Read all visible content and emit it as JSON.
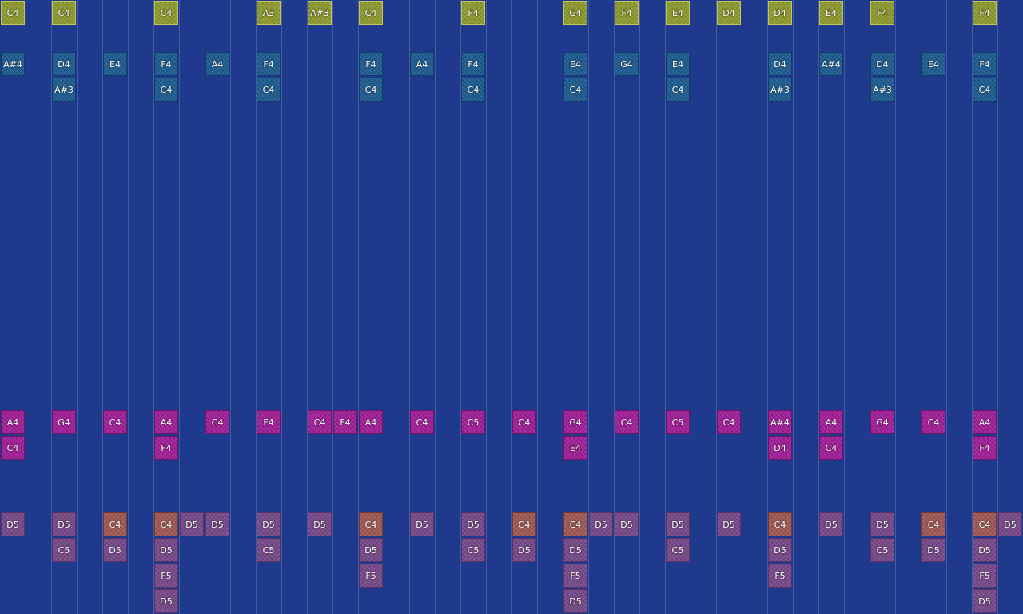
{
  "sequencer": {
    "column_count": 40,
    "tracks": [
      {
        "id": "lead",
        "color": "#8f9a2c",
        "notes": [
          {
            "col": 0,
            "row": 0,
            "pitch": "C4"
          },
          {
            "col": 2,
            "row": 0,
            "pitch": "C4"
          },
          {
            "col": 6,
            "row": 0,
            "pitch": "C4"
          },
          {
            "col": 10,
            "row": 0,
            "pitch": "A3"
          },
          {
            "col": 12,
            "row": 0,
            "pitch": "A#3"
          },
          {
            "col": 14,
            "row": 0,
            "pitch": "C4"
          },
          {
            "col": 18,
            "row": 0,
            "pitch": "F4"
          },
          {
            "col": 22,
            "row": 0,
            "pitch": "G4"
          },
          {
            "col": 24,
            "row": 0,
            "pitch": "F4"
          },
          {
            "col": 26,
            "row": 0,
            "pitch": "E4"
          },
          {
            "col": 28,
            "row": 0,
            "pitch": "D4"
          },
          {
            "col": 30,
            "row": 0,
            "pitch": "D4"
          },
          {
            "col": 32,
            "row": 0,
            "pitch": "E4"
          },
          {
            "col": 34,
            "row": 0,
            "pitch": "F4"
          },
          {
            "col": 38,
            "row": 0,
            "pitch": "F4"
          }
        ]
      },
      {
        "id": "harmony",
        "color": "#1c5d93",
        "notes": [
          {
            "col": 0,
            "row": 0,
            "pitch": "A#4"
          },
          {
            "col": 2,
            "row": 0,
            "pitch": "D4"
          },
          {
            "col": 2,
            "row": 1,
            "pitch": "A#3"
          },
          {
            "col": 4,
            "row": 0,
            "pitch": "E4"
          },
          {
            "col": 6,
            "row": 0,
            "pitch": "F4"
          },
          {
            "col": 6,
            "row": 1,
            "pitch": "C4"
          },
          {
            "col": 8,
            "row": 0,
            "pitch": "A4"
          },
          {
            "col": 10,
            "row": 0,
            "pitch": "F4"
          },
          {
            "col": 10,
            "row": 1,
            "pitch": "C4"
          },
          {
            "col": 14,
            "row": 0,
            "pitch": "F4"
          },
          {
            "col": 14,
            "row": 1,
            "pitch": "C4"
          },
          {
            "col": 16,
            "row": 0,
            "pitch": "A4"
          },
          {
            "col": 18,
            "row": 0,
            "pitch": "F4"
          },
          {
            "col": 18,
            "row": 1,
            "pitch": "C4"
          },
          {
            "col": 22,
            "row": 0,
            "pitch": "E4"
          },
          {
            "col": 22,
            "row": 1,
            "pitch": "C4"
          },
          {
            "col": 24,
            "row": 0,
            "pitch": "G4"
          },
          {
            "col": 26,
            "row": 0,
            "pitch": "E4"
          },
          {
            "col": 26,
            "row": 1,
            "pitch": "C4"
          },
          {
            "col": 30,
            "row": 0,
            "pitch": "D4"
          },
          {
            "col": 30,
            "row": 1,
            "pitch": "A#3"
          },
          {
            "col": 32,
            "row": 0,
            "pitch": "A#4"
          },
          {
            "col": 34,
            "row": 0,
            "pitch": "D4"
          },
          {
            "col": 34,
            "row": 1,
            "pitch": "A#3"
          },
          {
            "col": 36,
            "row": 0,
            "pitch": "E4"
          },
          {
            "col": 38,
            "row": 0,
            "pitch": "F4"
          },
          {
            "col": 38,
            "row": 1,
            "pitch": "C4"
          }
        ]
      },
      {
        "id": "bass",
        "color": "#a51f9c",
        "notes": [
          {
            "col": 0,
            "row": 0,
            "pitch": "A4"
          },
          {
            "col": 0,
            "row": 1,
            "pitch": "C4"
          },
          {
            "col": 2,
            "row": 0,
            "pitch": "G4"
          },
          {
            "col": 4,
            "row": 0,
            "pitch": "C4"
          },
          {
            "col": 6,
            "row": 0,
            "pitch": "A4"
          },
          {
            "col": 6,
            "row": 1,
            "pitch": "F4"
          },
          {
            "col": 8,
            "row": 0,
            "pitch": "C4"
          },
          {
            "col": 10,
            "row": 0,
            "pitch": "F4"
          },
          {
            "col": 12,
            "row": 0,
            "pitch": "C4"
          },
          {
            "col": 13,
            "row": 0,
            "pitch": "F4"
          },
          {
            "col": 14,
            "row": 0,
            "pitch": "A4"
          },
          {
            "col": 16,
            "row": 0,
            "pitch": "C4"
          },
          {
            "col": 18,
            "row": 0,
            "pitch": "C5"
          },
          {
            "col": 20,
            "row": 0,
            "pitch": "C4"
          },
          {
            "col": 22,
            "row": 0,
            "pitch": "G4"
          },
          {
            "col": 22,
            "row": 1,
            "pitch": "E4"
          },
          {
            "col": 24,
            "row": 0,
            "pitch": "C4"
          },
          {
            "col": 26,
            "row": 0,
            "pitch": "C5"
          },
          {
            "col": 28,
            "row": 0,
            "pitch": "C4"
          },
          {
            "col": 30,
            "row": 0,
            "pitch": "A#4"
          },
          {
            "col": 30,
            "row": 1,
            "pitch": "D4"
          },
          {
            "col": 32,
            "row": 0,
            "pitch": "A4"
          },
          {
            "col": 32,
            "row": 1,
            "pitch": "C4"
          },
          {
            "col": 34,
            "row": 0,
            "pitch": "G4"
          },
          {
            "col": 36,
            "row": 0,
            "pitch": "C4"
          },
          {
            "col": 38,
            "row": 0,
            "pitch": "A4"
          },
          {
            "col": 38,
            "row": 1,
            "pitch": "F4"
          }
        ]
      },
      {
        "id": "drums",
        "color": "#7a4b8c",
        "notes": [
          {
            "col": 0,
            "row": 0,
            "pitch": "D5",
            "kind": "drum"
          },
          {
            "col": 2,
            "row": 0,
            "pitch": "D5",
            "kind": "drum"
          },
          {
            "col": 2,
            "row": 1,
            "pitch": "C5",
            "kind": "drum"
          },
          {
            "col": 4,
            "row": 0,
            "pitch": "C4",
            "kind": "kick"
          },
          {
            "col": 4,
            "row": 1,
            "pitch": "D5",
            "kind": "drum"
          },
          {
            "col": 6,
            "row": 0,
            "pitch": "C4",
            "kind": "kick"
          },
          {
            "col": 6,
            "row": 1,
            "pitch": "D5",
            "kind": "drum"
          },
          {
            "col": 6,
            "row": 2,
            "pitch": "F5",
            "kind": "drum"
          },
          {
            "col": 6,
            "row": 3,
            "pitch": "D5",
            "kind": "drum"
          },
          {
            "col": 7,
            "row": 0,
            "pitch": "D5",
            "kind": "drum"
          },
          {
            "col": 8,
            "row": 0,
            "pitch": "D5",
            "kind": "drum"
          },
          {
            "col": 10,
            "row": 0,
            "pitch": "D5",
            "kind": "drum"
          },
          {
            "col": 10,
            "row": 1,
            "pitch": "C5",
            "kind": "drum"
          },
          {
            "col": 12,
            "row": 0,
            "pitch": "D5",
            "kind": "drum"
          },
          {
            "col": 14,
            "row": 0,
            "pitch": "C4",
            "kind": "kick"
          },
          {
            "col": 14,
            "row": 1,
            "pitch": "D5",
            "kind": "drum"
          },
          {
            "col": 14,
            "row": 2,
            "pitch": "F5",
            "kind": "drum"
          },
          {
            "col": 16,
            "row": 0,
            "pitch": "D5",
            "kind": "drum"
          },
          {
            "col": 18,
            "row": 0,
            "pitch": "D5",
            "kind": "drum"
          },
          {
            "col": 18,
            "row": 1,
            "pitch": "C5",
            "kind": "drum"
          },
          {
            "col": 20,
            "row": 0,
            "pitch": "C4",
            "kind": "kick"
          },
          {
            "col": 20,
            "row": 1,
            "pitch": "D5",
            "kind": "drum"
          },
          {
            "col": 22,
            "row": 0,
            "pitch": "C4",
            "kind": "kick"
          },
          {
            "col": 22,
            "row": 1,
            "pitch": "D5",
            "kind": "drum"
          },
          {
            "col": 22,
            "row": 2,
            "pitch": "F5",
            "kind": "drum"
          },
          {
            "col": 22,
            "row": 3,
            "pitch": "D5",
            "kind": "drum"
          },
          {
            "col": 23,
            "row": 0,
            "pitch": "D5",
            "kind": "drum"
          },
          {
            "col": 24,
            "row": 0,
            "pitch": "D5",
            "kind": "drum"
          },
          {
            "col": 26,
            "row": 0,
            "pitch": "D5",
            "kind": "drum"
          },
          {
            "col": 26,
            "row": 1,
            "pitch": "C5",
            "kind": "drum"
          },
          {
            "col": 28,
            "row": 0,
            "pitch": "D5",
            "kind": "drum"
          },
          {
            "col": 30,
            "row": 0,
            "pitch": "C4",
            "kind": "kick"
          },
          {
            "col": 30,
            "row": 1,
            "pitch": "D5",
            "kind": "drum"
          },
          {
            "col": 30,
            "row": 2,
            "pitch": "F5",
            "kind": "drum"
          },
          {
            "col": 32,
            "row": 0,
            "pitch": "D5",
            "kind": "drum"
          },
          {
            "col": 34,
            "row": 0,
            "pitch": "D5",
            "kind": "drum"
          },
          {
            "col": 34,
            "row": 1,
            "pitch": "C5",
            "kind": "drum"
          },
          {
            "col": 36,
            "row": 0,
            "pitch": "C4",
            "kind": "kick"
          },
          {
            "col": 36,
            "row": 1,
            "pitch": "D5",
            "kind": "drum"
          },
          {
            "col": 38,
            "row": 0,
            "pitch": "C4",
            "kind": "kick"
          },
          {
            "col": 38,
            "row": 1,
            "pitch": "D5",
            "kind": "drum"
          },
          {
            "col": 38,
            "row": 2,
            "pitch": "F5",
            "kind": "drum"
          },
          {
            "col": 38,
            "row": 3,
            "pitch": "D5",
            "kind": "drum"
          },
          {
            "col": 39,
            "row": 0,
            "pitch": "D5",
            "kind": "drum"
          }
        ]
      }
    ]
  }
}
